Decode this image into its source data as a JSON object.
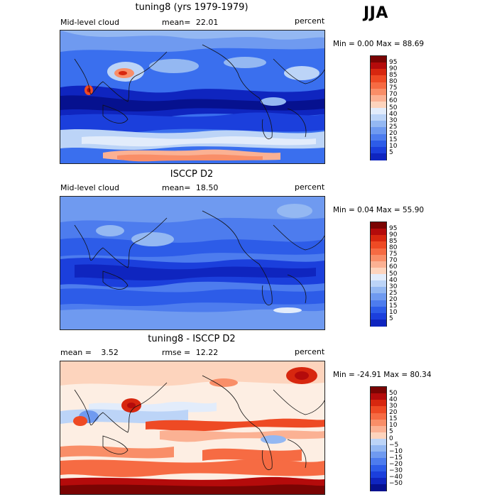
{
  "season": "JJA",
  "colors": {
    "pos": [
      "#7a0403",
      "#b40b0b",
      "#d7270f",
      "#ee4a24",
      "#f66b43",
      "#f98e68",
      "#fbb193",
      "#fdd4bd",
      "#fdeee3"
    ],
    "neg": [
      "#e2ecfb",
      "#bcd4f7",
      "#94b8f2",
      "#6f9af0",
      "#4d7cee",
      "#2d5ce8",
      "#1b3fdc",
      "#0f25bf",
      "#06118f",
      "#000a6e"
    ]
  },
  "panels": [
    {
      "title": "tuning8 (yrs 1979-1979)",
      "left_label": "Mid-level cloud",
      "stat_label": "mean=",
      "stat_value": "22.01",
      "units": "percent",
      "minmax": "Min =    0.00 Max =   88.69"
    },
    {
      "title": "ISCCP D2",
      "left_label": "Mid-level cloud",
      "stat_label": "mean=",
      "stat_value": "18.50",
      "units": "percent",
      "minmax": "Min =   0.04 Max =   55.90"
    },
    {
      "title": "tuning8 - ISCCP D2",
      "left_label": "mean =",
      "left_value": "3.52",
      "stat_label": "rmse =",
      "stat_value": "12.22",
      "units": "percent",
      "minmax": "Min = -24.91 Max =   80.34"
    }
  ],
  "chart_data": [
    {
      "type": "heatmap",
      "title": "tuning8 (yrs 1979-1979)",
      "variable": "Mid-level cloud",
      "units": "percent",
      "mean": 22.01,
      "min": 0.0,
      "max": 88.69,
      "colorbar_levels": [
        5,
        10,
        15,
        20,
        25,
        30,
        40,
        50,
        60,
        70,
        75,
        80,
        85,
        90,
        95
      ]
    },
    {
      "type": "heatmap",
      "title": "ISCCP D2",
      "variable": "Mid-level cloud",
      "units": "percent",
      "mean": 18.5,
      "min": 0.04,
      "max": 55.9,
      "colorbar_levels": [
        5,
        10,
        15,
        20,
        25,
        30,
        40,
        50,
        60,
        70,
        75,
        80,
        85,
        90,
        95
      ]
    },
    {
      "type": "heatmap",
      "title": "tuning8 - ISCCP D2",
      "units": "percent",
      "mean": 3.52,
      "rmse": 12.22,
      "min": -24.91,
      "max": 80.34,
      "colorbar_levels": [
        -50,
        -40,
        -30,
        -20,
        -15,
        -10,
        -5,
        0,
        5,
        10,
        15,
        20,
        30,
        40,
        50
      ]
    }
  ],
  "colorbars": [
    {
      "labels": [
        "95",
        "90",
        "85",
        "80",
        "75",
        "70",
        "60",
        "50",
        "40",
        "30",
        "25",
        "20",
        "15",
        "10",
        "5"
      ]
    },
    {
      "labels": [
        "95",
        "90",
        "85",
        "80",
        "75",
        "70",
        "60",
        "50",
        "40",
        "30",
        "25",
        "20",
        "15",
        "10",
        "5"
      ]
    },
    {
      "labels": [
        "50",
        "40",
        "30",
        "20",
        "15",
        "10",
        "5",
        "0",
        "−5",
        "−10",
        "−15",
        "−20",
        "−30",
        "−40",
        "−50"
      ]
    }
  ]
}
